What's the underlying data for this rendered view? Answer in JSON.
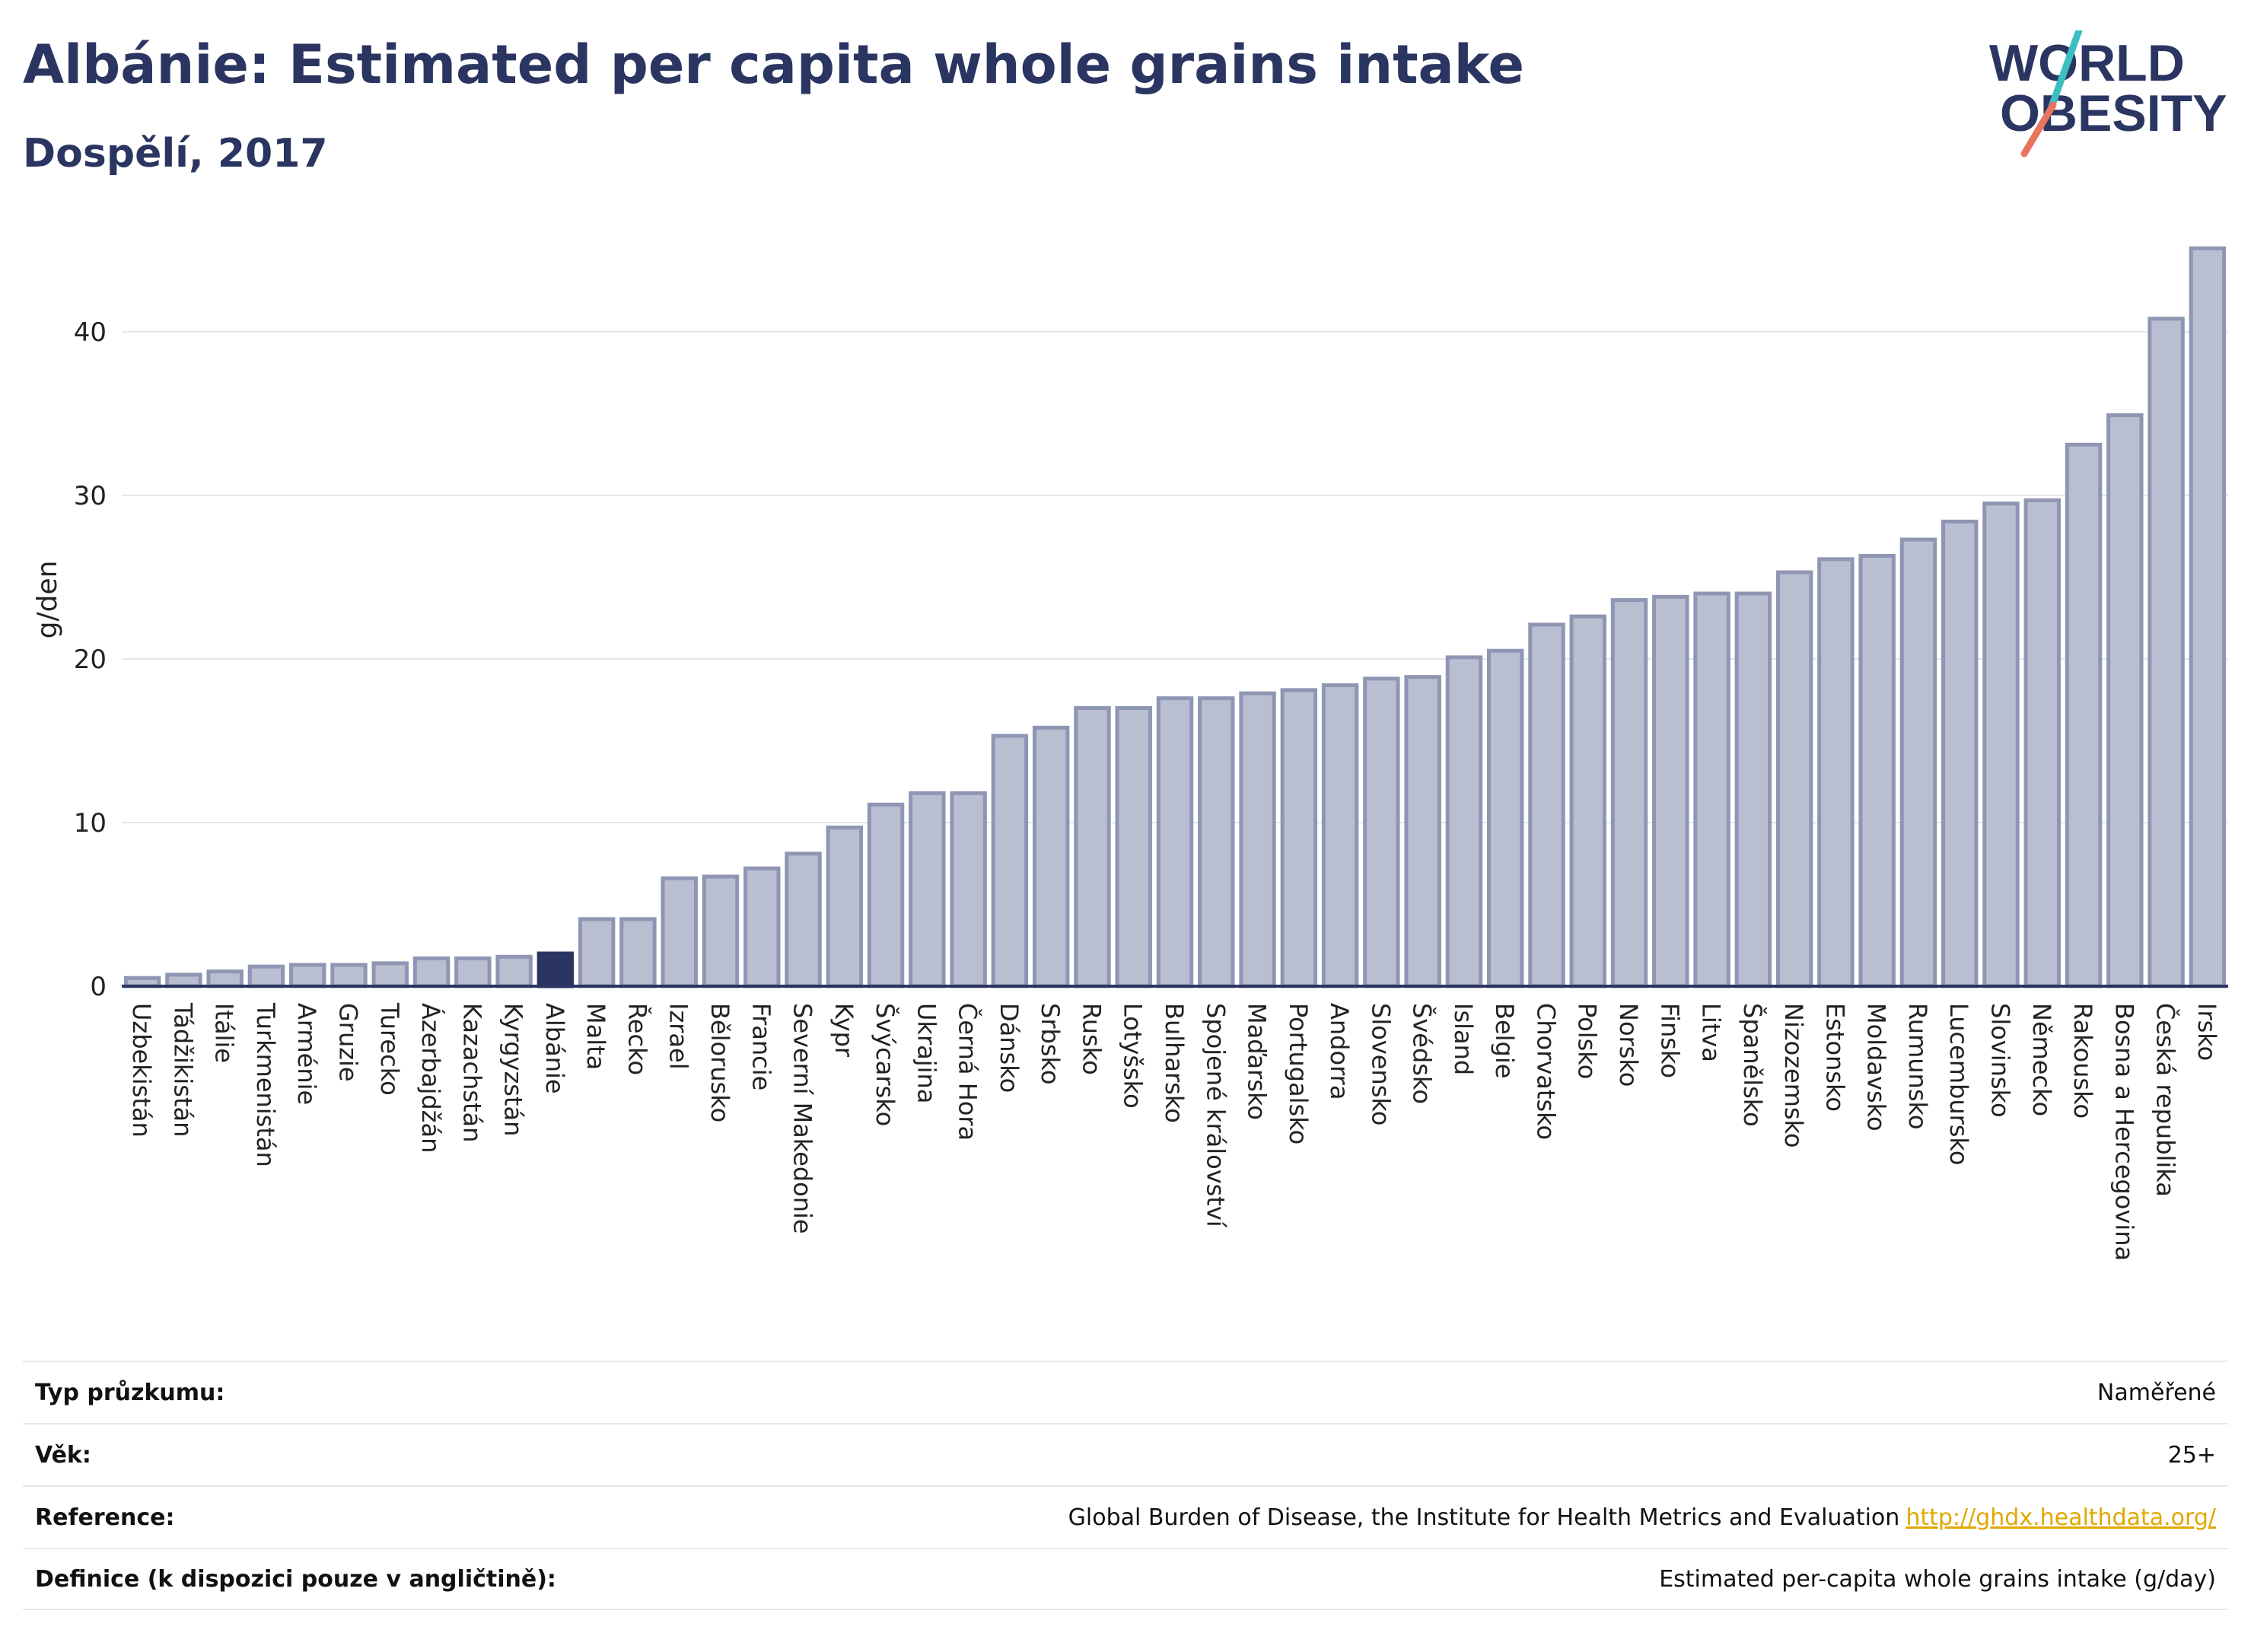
{
  "header": {
    "title": "Albánie: Estimated per capita whole grains intake",
    "subtitle": "Dospělí, 2017"
  },
  "logo": {
    "line1": "WORLD",
    "line2": "OBESITY",
    "colors": {
      "text": "#2b3561",
      "slash_teal": "#3bbfc1",
      "slash_coral": "#e8735f"
    }
  },
  "chart_data": {
    "type": "bar",
    "title": "Albánie: Estimated per capita whole grains intake",
    "subtitle": "Dospělí, 2017",
    "ylabel": "g/den",
    "xlabel": "",
    "ylim": [
      0,
      46
    ],
    "yticks": [
      0,
      10,
      20,
      30,
      40
    ],
    "grid": true,
    "highlight": "Albánie",
    "colors": {
      "bar": "#b9bfd0",
      "bar_edge": "#8e96b3",
      "highlight": "#2b3561",
      "axis": "#2b3561",
      "grid": "#e4e6ec"
    },
    "categories": [
      "Uzbekistán",
      "Tádžikistán",
      "Itálie",
      "Turkmenistán",
      "Arménie",
      "Gruzie",
      "Turecko",
      "Ázerbajdžán",
      "Kazachstán",
      "Kyrgyzstán",
      "Albánie",
      "Malta",
      "Řecko",
      "Izrael",
      "Bělorusko",
      "Francie",
      "Severní Makedonie",
      "Kypr",
      "Švýcarsko",
      "Ukrajina",
      "Černá Hora",
      "Dánsko",
      "Srbsko",
      "Rusko",
      "Lotyšsko",
      "Bulharsko",
      "Spojené království",
      "Maďarsko",
      "Portugalsko",
      "Andorra",
      "Slovensko",
      "Švédsko",
      "Island",
      "Belgie",
      "Chorvatsko",
      "Polsko",
      "Norsko",
      "Finsko",
      "Litva",
      "Španělsko",
      "Nizozemsko",
      "Estonsko",
      "Moldavsko",
      "Rumunsko",
      "Lucembursko",
      "Slovinsko",
      "Německo",
      "Rakousko",
      "Bosna a Hercegovina",
      "Česká republika",
      "Irsko"
    ],
    "values": [
      0.5,
      0.7,
      0.9,
      1.2,
      1.3,
      1.3,
      1.4,
      1.7,
      1.7,
      1.8,
      2.0,
      4.1,
      4.1,
      6.6,
      6.7,
      7.2,
      8.1,
      9.7,
      11.1,
      11.8,
      11.8,
      15.3,
      15.8,
      17.0,
      17.0,
      17.6,
      17.6,
      17.9,
      18.1,
      18.4,
      18.8,
      18.9,
      20.1,
      20.5,
      22.1,
      22.6,
      23.6,
      23.8,
      24.0,
      24.0,
      25.3,
      26.1,
      26.3,
      27.3,
      28.4,
      29.5,
      29.7,
      33.1,
      34.9,
      40.8,
      45.1
    ]
  },
  "info_table": [
    {
      "label": "Typ průzkumu:",
      "value": "Naměřené",
      "link": ""
    },
    {
      "label": "Věk:",
      "value": "25+",
      "link": ""
    },
    {
      "label": "Reference:",
      "value": "Global Burden of Disease, the Institute for Health Metrics and Evaluation",
      "link": "http://ghdx.healthdata.org/"
    },
    {
      "label": "Definice (k dispozici pouze v angličtině):",
      "value": "Estimated per-capita whole grains intake (g/day)",
      "link": ""
    }
  ]
}
